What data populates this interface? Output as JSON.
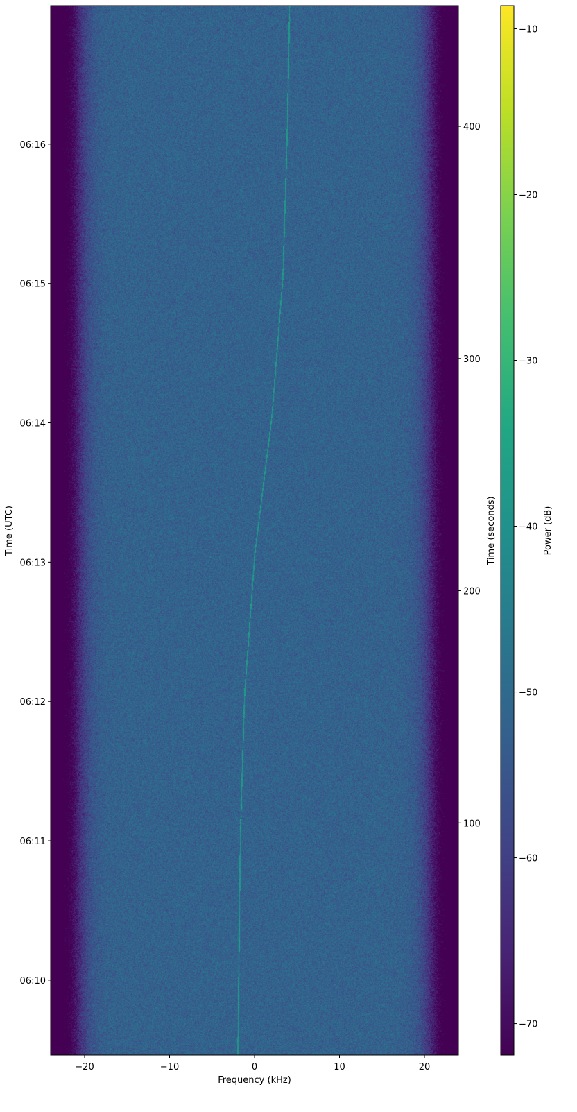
{
  "chart_data": {
    "type": "heatmap",
    "subtype": "spectrogram",
    "xlabel": "Frequency (kHz)",
    "ylabel_left": "Time (UTC)",
    "ylabel_right": "Time (seconds)",
    "colorbar_label": "Power (dB)",
    "colormap": "viridis",
    "xlim": [
      -24,
      24
    ],
    "ylim_seconds": [
      0,
      452
    ],
    "clim": [
      -71.9,
      -8.6
    ],
    "x_ticks": [
      -20,
      -10,
      0,
      10,
      20
    ],
    "x_tick_labels": [
      "−20",
      "−10",
      "0",
      "10",
      "20"
    ],
    "y_left_ticks_seconds": [
      32.3,
      92.3,
      152.3,
      212.3,
      272.3,
      332.3,
      392.3
    ],
    "y_left_tick_labels": [
      "06:10",
      "06:11",
      "06:12",
      "06:13",
      "06:14",
      "06:15",
      "06:16"
    ],
    "y_right_ticks": [
      100,
      200,
      300,
      400
    ],
    "y_right_tick_labels": [
      "100",
      "200",
      "300",
      "400"
    ],
    "colorbar_ticks": [
      -10,
      -20,
      -30,
      -40,
      -50,
      -60,
      -70
    ],
    "colorbar_tick_labels": [
      "−10",
      "−20",
      "−30",
      "−40",
      "−50",
      "−60",
      "−70"
    ],
    "noise_floor_db": -52,
    "passband_khz": [
      -21,
      21
    ],
    "signal_trace": {
      "time_s": [
        0,
        96,
        156,
        216,
        275,
        335,
        395,
        452
      ],
      "freq_khz": [
        -2.0,
        -1.7,
        -1.2,
        0.0,
        2.0,
        3.3,
        3.8,
        4.1
      ],
      "power_db": -38
    },
    "grid": false
  }
}
